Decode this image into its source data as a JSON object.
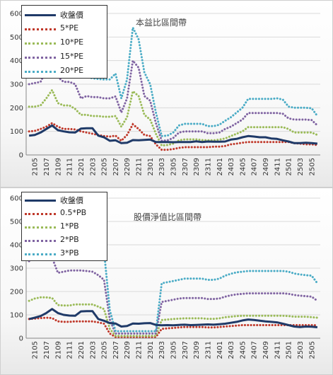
{
  "chart_data": [
    {
      "type": "line",
      "title": "本益比區間帶",
      "x": [
        "2104",
        "2105",
        "2106",
        "2107",
        "2108",
        "2109",
        "2110",
        "2111",
        "2112",
        "2201",
        "2202",
        "2203",
        "2204",
        "2205",
        "2206",
        "2207",
        "2208",
        "2209",
        "2210",
        "2211",
        "2212",
        "2301",
        "2302",
        "2303",
        "2304",
        "2305",
        "2306",
        "2307",
        "2308",
        "2309",
        "2310",
        "2311",
        "2312",
        "2401",
        "2402",
        "2403",
        "2404",
        "2405",
        "2406",
        "2407",
        "2408",
        "2409",
        "2410",
        "2411",
        "2412",
        "2501",
        "2502",
        "2503",
        "2504",
        "2505",
        "2506"
      ],
      "x_tick_labels": [
        "2105",
        "2107",
        "2109",
        "2111",
        "2201",
        "2203",
        "2205",
        "2207",
        "2209",
        "2211",
        "2301",
        "2303",
        "2305",
        "2307",
        "2309",
        "2311",
        "2401",
        "2403",
        "2405",
        "2407",
        "2409",
        "2411",
        "2501",
        "2503",
        "2505"
      ],
      "ylim": [
        0,
        600
      ],
      "y_ticks": [
        "0",
        "100",
        "200",
        "300",
        "400",
        "500",
        "600"
      ],
      "legend_position": "top-left",
      "series": [
        {
          "name": "收盤價",
          "color": "#1f3a68",
          "style": "solid",
          "values": [
            82,
            85,
            95,
            110,
            125,
            105,
            100,
            96,
            95,
            112,
            113,
            113,
            82,
            75,
            60,
            62,
            50,
            52,
            63,
            62,
            64,
            65,
            55,
            55,
            55,
            54,
            55,
            55,
            55,
            58,
            55,
            57,
            56,
            56,
            57,
            65,
            68,
            75,
            80,
            78,
            75,
            75,
            70,
            68,
            62,
            57,
            50,
            50,
            52,
            50,
            48
          ]
        },
        {
          "name": "5*PE",
          "color": "#c0392b",
          "style": "dotted",
          "values": [
            100,
            102,
            110,
            120,
            135,
            120,
            110,
            110,
            108,
            100,
            95,
            90,
            85,
            80,
            78,
            82,
            60,
            85,
            130,
            110,
            85,
            80,
            45,
            22,
            22,
            25,
            30,
            33,
            33,
            33,
            33,
            33,
            35,
            35,
            38,
            45,
            48,
            52,
            55,
            55,
            55,
            55,
            55,
            55,
            55,
            55,
            50,
            48,
            45,
            45,
            42
          ]
        },
        {
          "name": "10*PE",
          "color": "#9bbb59",
          "style": "dotted",
          "values": [
            205,
            205,
            210,
            240,
            275,
            220,
            210,
            210,
            195,
            170,
            170,
            165,
            165,
            162,
            162,
            165,
            120,
            160,
            270,
            250,
            170,
            150,
            90,
            40,
            42,
            48,
            62,
            66,
            66,
            66,
            63,
            62,
            62,
            65,
            70,
            80,
            90,
            100,
            118,
            118,
            118,
            118,
            118,
            118,
            118,
            110,
            95,
            95,
            95,
            95,
            85
          ]
        },
        {
          "name": "15*PE",
          "color": "#8064a2",
          "style": "dotted",
          "values": [
            300,
            305,
            310,
            360,
            410,
            330,
            310,
            310,
            300,
            240,
            250,
            245,
            245,
            240,
            240,
            248,
            180,
            240,
            400,
            370,
            250,
            230,
            135,
            60,
            62,
            72,
            95,
            100,
            100,
            100,
            100,
            92,
            92,
            95,
            110,
            120,
            135,
            150,
            178,
            178,
            178,
            178,
            178,
            178,
            175,
            155,
            150,
            150,
            150,
            148,
            125
          ]
        },
        {
          "name": "20*PE",
          "color": "#4bacc6",
          "style": "dotted",
          "values": [
            410,
            420,
            415,
            480,
            550,
            440,
            410,
            410,
            400,
            330,
            330,
            325,
            322,
            320,
            320,
            345,
            240,
            320,
            540,
            490,
            350,
            300,
            180,
            80,
            82,
            95,
            125,
            132,
            132,
            132,
            132,
            122,
            122,
            128,
            145,
            160,
            180,
            200,
            238,
            238,
            238,
            238,
            238,
            240,
            235,
            205,
            200,
            200,
            200,
            198,
            165
          ]
        }
      ]
    },
    {
      "type": "line",
      "title": "股價淨值比區間帶",
      "x": [
        "2104",
        "2105",
        "2106",
        "2107",
        "2108",
        "2109",
        "2110",
        "2111",
        "2112",
        "2201",
        "2202",
        "2203",
        "2204",
        "2205",
        "2206",
        "2207",
        "2208",
        "2209",
        "2210",
        "2211",
        "2212",
        "2301",
        "2302",
        "2303",
        "2304",
        "2305",
        "2306",
        "2307",
        "2308",
        "2309",
        "2310",
        "2311",
        "2312",
        "2401",
        "2402",
        "2403",
        "2404",
        "2405",
        "2406",
        "2407",
        "2408",
        "2409",
        "2410",
        "2411",
        "2412",
        "2501",
        "2502",
        "2503",
        "2504",
        "2505",
        "2506"
      ],
      "x_tick_labels": [
        "2105",
        "2107",
        "2109",
        "2111",
        "2201",
        "2203",
        "2205",
        "2207",
        "2209",
        "2211",
        "2301",
        "2303",
        "2305",
        "2307",
        "2309",
        "2311",
        "2401",
        "2403",
        "2405",
        "2407",
        "2409",
        "2411",
        "2501",
        "2503",
        "2505"
      ],
      "ylim": [
        0,
        600
      ],
      "y_ticks": [
        "0",
        "100",
        "200",
        "300",
        "400",
        "500",
        "600"
      ],
      "legend_position": "top-left",
      "series": [
        {
          "name": "收盤價",
          "color": "#1f3a68",
          "style": "solid",
          "values": [
            82,
            88,
            95,
            108,
            125,
            108,
            100,
            97,
            96,
            115,
            116,
            116,
            82,
            75,
            65,
            63,
            50,
            52,
            63,
            62,
            64,
            65,
            57,
            55,
            56,
            55,
            57,
            58,
            56,
            57,
            58,
            59,
            58,
            60,
            62,
            66,
            70,
            76,
            80,
            78,
            75,
            72,
            70,
            68,
            62,
            56,
            50,
            48,
            50,
            49,
            47
          ]
        },
        {
          "name": "0.5*PB",
          "color": "#c0392b",
          "style": "dotted",
          "values": [
            82,
            84,
            86,
            88,
            86,
            72,
            70,
            70,
            72,
            72,
            72,
            72,
            68,
            62,
            20,
            5,
            5,
            5,
            5,
            5,
            5,
            5,
            5,
            40,
            42,
            44,
            46,
            48,
            48,
            48,
            48,
            46,
            46,
            48,
            50,
            52,
            54,
            56,
            56,
            56,
            56,
            56,
            56,
            56,
            56,
            56,
            56,
            56,
            56,
            56,
            55
          ]
        },
        {
          "name": "1*PB",
          "color": "#9bbb59",
          "style": "dotted",
          "values": [
            160,
            170,
            175,
            175,
            172,
            142,
            140,
            140,
            145,
            145,
            145,
            145,
            135,
            125,
            40,
            10,
            10,
            10,
            10,
            10,
            10,
            10,
            10,
            78,
            80,
            82,
            84,
            85,
            85,
            85,
            85,
            83,
            83,
            85,
            90,
            92,
            95,
            96,
            96,
            96,
            96,
            96,
            96,
            96,
            96,
            95,
            92,
            92,
            92,
            90,
            88
          ]
        },
        {
          "name": "2*PB",
          "color": "#8064a2",
          "style": "dotted",
          "values": [
            330,
            350,
            355,
            350,
            345,
            280,
            285,
            290,
            290,
            290,
            288,
            285,
            270,
            250,
            80,
            20,
            20,
            20,
            20,
            20,
            20,
            20,
            20,
            155,
            160,
            165,
            170,
            172,
            172,
            172,
            172,
            168,
            168,
            170,
            178,
            184,
            188,
            190,
            192,
            192,
            192,
            192,
            192,
            192,
            192,
            190,
            185,
            182,
            180,
            178,
            160
          ]
        },
        {
          "name": "3*PB",
          "color": "#4bacc6",
          "style": "dotted",
          "values": [
            480,
            520,
            530,
            525,
            515,
            420,
            425,
            435,
            435,
            435,
            430,
            428,
            405,
            375,
            120,
            30,
            30,
            30,
            30,
            30,
            30,
            30,
            30,
            235,
            240,
            245,
            250,
            255,
            255,
            255,
            255,
            250,
            250,
            255,
            268,
            276,
            282,
            285,
            288,
            288,
            288,
            288,
            288,
            288,
            288,
            285,
            277,
            273,
            270,
            268,
            235
          ]
        }
      ]
    }
  ]
}
